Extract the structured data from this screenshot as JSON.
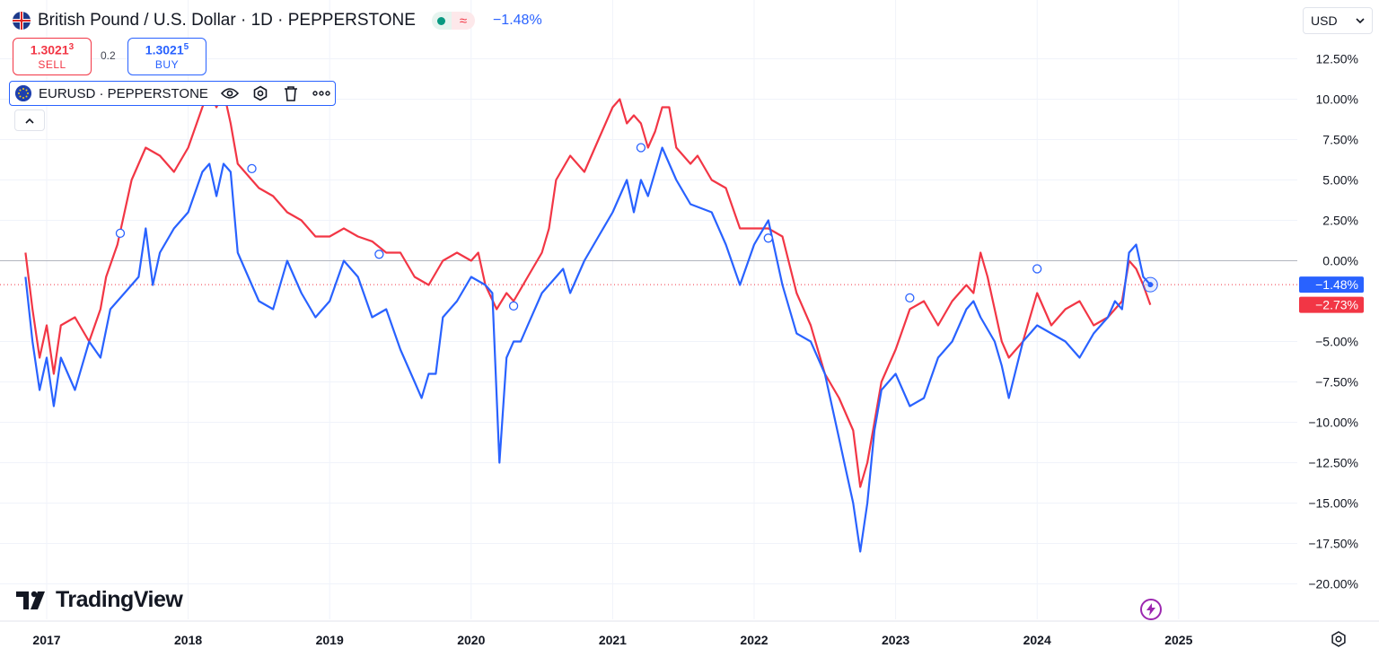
{
  "header": {
    "title": "British Pound / U.S. Dollar · 1D · PEPPERSTONE",
    "change": "−1.48%",
    "delay_icon": "≈"
  },
  "trade": {
    "sell_price": "1.3021",
    "sell_price_sup": "3",
    "sell_label": "SELL",
    "spread": "0.2",
    "buy_price": "1.3021",
    "buy_price_sup": "5",
    "buy_label": "BUY"
  },
  "legend": {
    "symbol": "EURUSD · PEPPERSTONE"
  },
  "currency": {
    "label": "USD"
  },
  "logo": {
    "text": "TradingView"
  },
  "icons": {
    "flag": "uk-flag-icon",
    "eu_flag": "eu-flag-icon",
    "eye": "eye-icon",
    "settings": "settings-icon",
    "trash": "trash-icon",
    "more": "more-icon",
    "collapse": "chevron-up-icon",
    "dropdown": "chevron-down-icon",
    "bolt": "lightning-icon",
    "gear": "gear-icon"
  },
  "colors": {
    "gbpusd": "#f23645",
    "eurusd": "#2962ff",
    "grid": "#f0f3fa",
    "text": "#131722"
  },
  "chart_data": {
    "type": "line",
    "x_unit": "year",
    "ylim": [
      -21.5,
      13.5
    ],
    "y_ticks": [
      "12.50%",
      "10.00%",
      "7.50%",
      "5.00%",
      "2.50%",
      "0.00%",
      "−5.00%",
      "−7.50%",
      "−10.00%",
      "−12.50%",
      "−15.00%",
      "−17.50%",
      "−20.00%"
    ],
    "y_tick_values": [
      12.5,
      10,
      7.5,
      5,
      2.5,
      0,
      -5,
      -7.5,
      -10,
      -12.5,
      -15,
      -17.5,
      -20
    ],
    "x_ticks": [
      "2017",
      "2018",
      "2019",
      "2020",
      "2021",
      "2022",
      "2023",
      "2024",
      "2025"
    ],
    "x_tick_values": [
      2017,
      2018,
      2019,
      2020,
      2021,
      2022,
      2023,
      2024,
      2025
    ],
    "series": [
      {
        "name": "British Pound / U.S. Dollar",
        "color": "#f23645",
        "last_label": "−2.73%",
        "points": [
          [
            2016.85,
            0.5
          ],
          [
            2016.9,
            -3
          ],
          [
            2016.95,
            -6
          ],
          [
            2017.0,
            -4
          ],
          [
            2017.05,
            -7
          ],
          [
            2017.1,
            -4
          ],
          [
            2017.2,
            -3.5
          ],
          [
            2017.3,
            -5
          ],
          [
            2017.38,
            -3
          ],
          [
            2017.42,
            -1
          ],
          [
            2017.5,
            1
          ],
          [
            2017.55,
            3
          ],
          [
            2017.6,
            5
          ],
          [
            2017.7,
            7
          ],
          [
            2017.8,
            6.5
          ],
          [
            2017.9,
            5.5
          ],
          [
            2018.0,
            7
          ],
          [
            2018.1,
            9.5
          ],
          [
            2018.15,
            10.5
          ],
          [
            2018.2,
            9.5
          ],
          [
            2018.25,
            10.5
          ],
          [
            2018.3,
            8.5
          ],
          [
            2018.35,
            6
          ],
          [
            2018.45,
            5
          ],
          [
            2018.5,
            4.5
          ],
          [
            2018.6,
            4
          ],
          [
            2018.7,
            3
          ],
          [
            2018.8,
            2.5
          ],
          [
            2018.9,
            1.5
          ],
          [
            2019.0,
            1.5
          ],
          [
            2019.1,
            2
          ],
          [
            2019.2,
            1.5
          ],
          [
            2019.3,
            1.2
          ],
          [
            2019.4,
            0.5
          ],
          [
            2019.5,
            0.5
          ],
          [
            2019.6,
            -1
          ],
          [
            2019.7,
            -1.5
          ],
          [
            2019.8,
            0
          ],
          [
            2019.9,
            0.5
          ],
          [
            2020.0,
            0
          ],
          [
            2020.05,
            0.5
          ],
          [
            2020.1,
            -1.5
          ],
          [
            2020.18,
            -3
          ],
          [
            2020.25,
            -2
          ],
          [
            2020.3,
            -2.5
          ],
          [
            2020.4,
            -1
          ],
          [
            2020.5,
            0.5
          ],
          [
            2020.55,
            2
          ],
          [
            2020.6,
            5
          ],
          [
            2020.7,
            6.5
          ],
          [
            2020.8,
            5.5
          ],
          [
            2020.9,
            7.5
          ],
          [
            2021.0,
            9.5
          ],
          [
            2021.05,
            10
          ],
          [
            2021.1,
            8.5
          ],
          [
            2021.15,
            9
          ],
          [
            2021.2,
            8.5
          ],
          [
            2021.25,
            7
          ],
          [
            2021.3,
            8
          ],
          [
            2021.35,
            9.5
          ],
          [
            2021.4,
            9.5
          ],
          [
            2021.45,
            7
          ],
          [
            2021.55,
            6
          ],
          [
            2021.6,
            6.5
          ],
          [
            2021.7,
            5
          ],
          [
            2021.8,
            4.5
          ],
          [
            2021.9,
            2
          ],
          [
            2022.0,
            2
          ],
          [
            2022.1,
            2
          ],
          [
            2022.2,
            1.5
          ],
          [
            2022.3,
            -2
          ],
          [
            2022.4,
            -4
          ],
          [
            2022.5,
            -7
          ],
          [
            2022.6,
            -8.5
          ],
          [
            2022.7,
            -10.5
          ],
          [
            2022.75,
            -14
          ],
          [
            2022.8,
            -12.5
          ],
          [
            2022.85,
            -10
          ],
          [
            2022.9,
            -7.5
          ],
          [
            2023.0,
            -5.5
          ],
          [
            2023.1,
            -3
          ],
          [
            2023.2,
            -2.5
          ],
          [
            2023.3,
            -4
          ],
          [
            2023.4,
            -2.5
          ],
          [
            2023.5,
            -1.5
          ],
          [
            2023.55,
            -2
          ],
          [
            2023.6,
            0.5
          ],
          [
            2023.65,
            -1
          ],
          [
            2023.7,
            -3
          ],
          [
            2023.75,
            -5
          ],
          [
            2023.8,
            -6
          ],
          [
            2023.9,
            -5
          ],
          [
            2024.0,
            -2
          ],
          [
            2024.1,
            -4
          ],
          [
            2024.2,
            -3
          ],
          [
            2024.3,
            -2.5
          ],
          [
            2024.4,
            -4
          ],
          [
            2024.5,
            -3.5
          ],
          [
            2024.6,
            -2.5
          ],
          [
            2024.65,
            0
          ],
          [
            2024.7,
            -0.5
          ],
          [
            2024.75,
            -1.5
          ],
          [
            2024.8,
            -2.73
          ]
        ]
      },
      {
        "name": "EURUSD · PEPPERSTONE",
        "color": "#2962ff",
        "last_label": "−1.48%",
        "points": [
          [
            2016.85,
            -1
          ],
          [
            2016.9,
            -5
          ],
          [
            2016.95,
            -8
          ],
          [
            2017.0,
            -6
          ],
          [
            2017.05,
            -9
          ],
          [
            2017.1,
            -6
          ],
          [
            2017.2,
            -8
          ],
          [
            2017.3,
            -5
          ],
          [
            2017.38,
            -6
          ],
          [
            2017.45,
            -3
          ],
          [
            2017.55,
            -2
          ],
          [
            2017.65,
            -1
          ],
          [
            2017.7,
            2
          ],
          [
            2017.75,
            -1.5
          ],
          [
            2017.8,
            0.5
          ],
          [
            2017.9,
            2
          ],
          [
            2018.0,
            3
          ],
          [
            2018.1,
            5.5
          ],
          [
            2018.15,
            6
          ],
          [
            2018.2,
            4
          ],
          [
            2018.25,
            6
          ],
          [
            2018.3,
            5.5
          ],
          [
            2018.35,
            0.5
          ],
          [
            2018.45,
            -1.5
          ],
          [
            2018.5,
            -2.5
          ],
          [
            2018.6,
            -3
          ],
          [
            2018.7,
            0
          ],
          [
            2018.8,
            -2
          ],
          [
            2018.9,
            -3.5
          ],
          [
            2019.0,
            -2.5
          ],
          [
            2019.1,
            0
          ],
          [
            2019.2,
            -1
          ],
          [
            2019.3,
            -3.5
          ],
          [
            2019.4,
            -3
          ],
          [
            2019.5,
            -5.5
          ],
          [
            2019.6,
            -7.5
          ],
          [
            2019.65,
            -8.5
          ],
          [
            2019.7,
            -7
          ],
          [
            2019.75,
            -7
          ],
          [
            2019.8,
            -3.5
          ],
          [
            2019.9,
            -2.5
          ],
          [
            2020.0,
            -1
          ],
          [
            2020.1,
            -1.5
          ],
          [
            2020.15,
            -2
          ],
          [
            2020.2,
            -12.5
          ],
          [
            2020.25,
            -6
          ],
          [
            2020.3,
            -5
          ],
          [
            2020.35,
            -5
          ],
          [
            2020.4,
            -4
          ],
          [
            2020.5,
            -2
          ],
          [
            2020.6,
            -1
          ],
          [
            2020.65,
            -0.5
          ],
          [
            2020.7,
            -2
          ],
          [
            2020.8,
            0
          ],
          [
            2020.9,
            1.5
          ],
          [
            2021.0,
            3
          ],
          [
            2021.1,
            5
          ],
          [
            2021.15,
            3
          ],
          [
            2021.2,
            5
          ],
          [
            2021.25,
            4
          ],
          [
            2021.35,
            7
          ],
          [
            2021.45,
            5
          ],
          [
            2021.55,
            3.5
          ],
          [
            2021.7,
            3
          ],
          [
            2021.8,
            1
          ],
          [
            2021.9,
            -1.5
          ],
          [
            2022.0,
            1
          ],
          [
            2022.1,
            2.5
          ],
          [
            2022.2,
            -1.5
          ],
          [
            2022.3,
            -4.5
          ],
          [
            2022.4,
            -5
          ],
          [
            2022.5,
            -7
          ],
          [
            2022.6,
            -11
          ],
          [
            2022.65,
            -13
          ],
          [
            2022.7,
            -15
          ],
          [
            2022.75,
            -18
          ],
          [
            2022.8,
            -15
          ],
          [
            2022.85,
            -10.5
          ],
          [
            2022.9,
            -8
          ],
          [
            2023.0,
            -7
          ],
          [
            2023.1,
            -9
          ],
          [
            2023.2,
            -8.5
          ],
          [
            2023.3,
            -6
          ],
          [
            2023.4,
            -5
          ],
          [
            2023.5,
            -3
          ],
          [
            2023.55,
            -2.5
          ],
          [
            2023.6,
            -3.5
          ],
          [
            2023.7,
            -5
          ],
          [
            2023.75,
            -6.5
          ],
          [
            2023.8,
            -8.5
          ],
          [
            2023.9,
            -5
          ],
          [
            2024.0,
            -4
          ],
          [
            2024.1,
            -4.5
          ],
          [
            2024.2,
            -5
          ],
          [
            2024.3,
            -6
          ],
          [
            2024.4,
            -4.5
          ],
          [
            2024.5,
            -3.5
          ],
          [
            2024.55,
            -2.5
          ],
          [
            2024.6,
            -3
          ],
          [
            2024.65,
            0.5
          ],
          [
            2024.7,
            1
          ],
          [
            2024.75,
            -1
          ],
          [
            2024.8,
            -1.48
          ]
        ]
      }
    ],
    "event_markers": [
      [
        2017.52,
        1.7
      ],
      [
        2018.45,
        5.7
      ],
      [
        2019.35,
        0.4
      ],
      [
        2020.3,
        -2.8
      ],
      [
        2021.2,
        7.0
      ],
      [
        2022.1,
        1.4
      ],
      [
        2023.1,
        -2.3
      ],
      [
        2024.0,
        -0.5
      ]
    ]
  }
}
